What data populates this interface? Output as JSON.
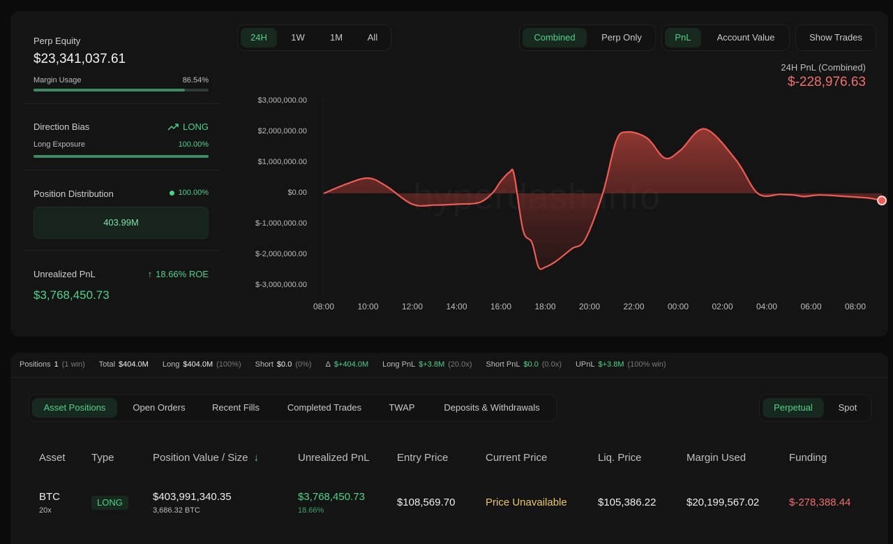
{
  "summary": {
    "perp_equity_label": "Perp Equity",
    "perp_equity_value": "$23,341,037.61",
    "margin_usage_label": "Margin Usage",
    "margin_usage_value": "86.54%",
    "margin_usage_fraction": 0.8654,
    "direction_bias_label": "Direction Bias",
    "direction_bias_value": "LONG",
    "long_exposure_label": "Long Exposure",
    "long_exposure_value": "100.00%",
    "long_exposure_fraction": 1.0,
    "position_distribution_label": "Position Distribution",
    "position_distribution_value": "100.00%",
    "position_distribution_amount": "403.99M",
    "unrealized_pnl_label": "Unrealized PnL",
    "unrealized_pnl_roe": "18.66% ROE",
    "unrealized_pnl_value": "$3,768,450.73"
  },
  "range_tabs": [
    "24H",
    "1W",
    "1M",
    "All"
  ],
  "mode_tabs": [
    "Combined",
    "Perp Only"
  ],
  "metric_tabs": [
    "PnL",
    "Account Value"
  ],
  "show_trades_label": "Show Trades",
  "pnl_header": {
    "label": "24H PnL (Combined)",
    "value": "$-228,976.63"
  },
  "watermark": "hyperdash.info",
  "chart_data": {
    "type": "area",
    "ylim": [
      -3000000,
      3000000
    ],
    "y_ticks": [
      "$3,000,000.00",
      "$2,000,000.00",
      "$1,000,000.00",
      "$0.00",
      "$-1,000,000.00",
      "$-2,000,000.00",
      "$-3,000,000.00"
    ],
    "x_ticks": [
      "08:00",
      "10:00",
      "12:00",
      "14:00",
      "16:00",
      "18:00",
      "20:00",
      "22:00",
      "00:00",
      "02:00",
      "04:00",
      "06:00",
      "08:00"
    ],
    "x_hours": [
      0,
      1,
      2,
      2.8,
      4,
      5,
      6,
      7,
      7.6,
      8,
      8.4,
      8.6,
      9,
      9.4,
      9.7,
      10,
      10.5,
      11.2,
      11.8,
      12.6,
      13.2,
      13.7,
      14.6,
      15.4,
      16.1,
      17.2,
      18.6,
      19.6,
      20.6,
      21.2,
      21.7,
      22.4,
      23.6,
      24.6,
      25.2
    ],
    "values": [
      0,
      300000,
      500000,
      250000,
      -350000,
      -380000,
      -350000,
      -300000,
      0,
      400000,
      700000,
      600000,
      -1200000,
      -1600000,
      -2400000,
      -2400000,
      -2200000,
      -1800000,
      -1500000,
      0,
      1700000,
      2000000,
      1800000,
      1150000,
      1400000,
      2100000,
      1100000,
      0,
      -30000,
      -50000,
      -100000,
      -50000,
      -100000,
      -150000,
      -230000
    ],
    "series_color": "#ee5c56"
  },
  "stats_bar": {
    "positions_label": "Positions",
    "positions_value": "1",
    "positions_note": "(1 win)",
    "total_label": "Total",
    "total_value": "$404.0M",
    "long_label": "Long",
    "long_value": "$404.0M",
    "long_note": "(100%)",
    "short_label": "Short",
    "short_value": "$0.0",
    "short_note": "(0%)",
    "delta_label": "Δ",
    "delta_value": "$+404.0M",
    "long_pnl_label": "Long PnL",
    "long_pnl_value": "$+3.8M",
    "long_pnl_note": "(20.0x)",
    "short_pnl_label": "Short PnL",
    "short_pnl_value": "$0.0",
    "short_pnl_note": "(0.0x)",
    "upnl_label": "UPnL",
    "upnl_value": "$+3.8M",
    "upnl_note": "(100% win)"
  },
  "position_tabs": [
    "Asset Positions",
    "Open Orders",
    "Recent Fills",
    "Completed Trades",
    "TWAP",
    "Deposits & Withdrawals"
  ],
  "market_tabs": [
    "Perpetual",
    "Spot"
  ],
  "table": {
    "headers": [
      "Asset",
      "Type",
      "Position Value / Size",
      "Unrealized PnL",
      "Entry Price",
      "Current Price",
      "Liq. Price",
      "Margin Used",
      "Funding"
    ],
    "sort_icon": "arrow-down-icon",
    "rows": [
      {
        "asset": "BTC",
        "leverage": "20x",
        "type": "LONG",
        "position_value": "$403,991,340.35",
        "position_size": "3,686.32 BTC",
        "unrealized_pnl": "$3,768,450.73",
        "unrealized_pct": "18.66%",
        "entry_price": "$108,569.70",
        "current_price": "Price Unavailable",
        "liq_price": "$105,386.22",
        "margin_used": "$20,199,567.02",
        "funding": "$-278,388.44"
      }
    ]
  },
  "colors": {
    "accent_green": "#4fd18b",
    "negative_red": "#ef6f6f",
    "warning_yellow": "#e8c766"
  }
}
